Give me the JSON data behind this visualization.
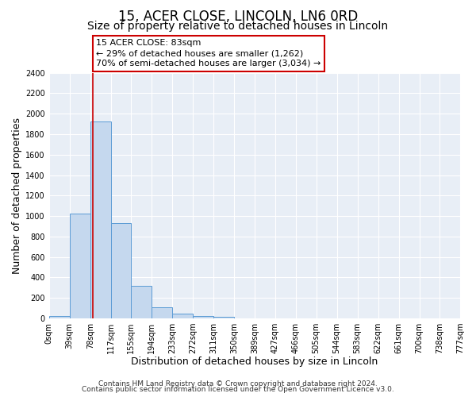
{
  "title": "15, ACER CLOSE, LINCOLN, LN6 0RD",
  "subtitle": "Size of property relative to detached houses in Lincoln",
  "xlabel": "Distribution of detached houses by size in Lincoln",
  "ylabel": "Number of detached properties",
  "bin_edges": [
    0,
    39,
    78,
    117,
    155,
    194,
    233,
    272,
    311,
    350,
    389,
    427,
    466,
    505,
    544,
    583,
    622,
    661,
    700,
    738,
    777
  ],
  "bin_labels": [
    "0sqm",
    "39sqm",
    "78sqm",
    "117sqm",
    "155sqm",
    "194sqm",
    "233sqm",
    "272sqm",
    "311sqm",
    "350sqm",
    "389sqm",
    "427sqm",
    "466sqm",
    "505sqm",
    "544sqm",
    "583sqm",
    "622sqm",
    "661sqm",
    "700sqm",
    "738sqm",
    "777sqm"
  ],
  "bar_heights": [
    20,
    1020,
    1920,
    930,
    320,
    110,
    50,
    25,
    15,
    0,
    0,
    0,
    0,
    0,
    0,
    0,
    0,
    0,
    0,
    0
  ],
  "bar_color": "#c5d8ee",
  "bar_edgecolor": "#5b9bd5",
  "bar_linewidth": 0.7,
  "vline_x": 83,
  "vline_color": "#cc0000",
  "ylim": [
    0,
    2400
  ],
  "yticks": [
    0,
    200,
    400,
    600,
    800,
    1000,
    1200,
    1400,
    1600,
    1800,
    2000,
    2200,
    2400
  ],
  "bg_color": "#ffffff",
  "plot_bg_color": "#e8eef6",
  "grid_color": "#ffffff",
  "annotation_title": "15 ACER CLOSE: 83sqm",
  "annotation_line1": "← 29% of detached houses are smaller (1,262)",
  "annotation_line2": "70% of semi-detached houses are larger (3,034) →",
  "footer_line1": "Contains HM Land Registry data © Crown copyright and database right 2024.",
  "footer_line2": "Contains public sector information licensed under the Open Government Licence v3.0.",
  "title_fontsize": 12,
  "subtitle_fontsize": 10,
  "axis_label_fontsize": 9,
  "tick_fontsize": 7,
  "annotation_fontsize": 8,
  "footer_fontsize": 6.5
}
